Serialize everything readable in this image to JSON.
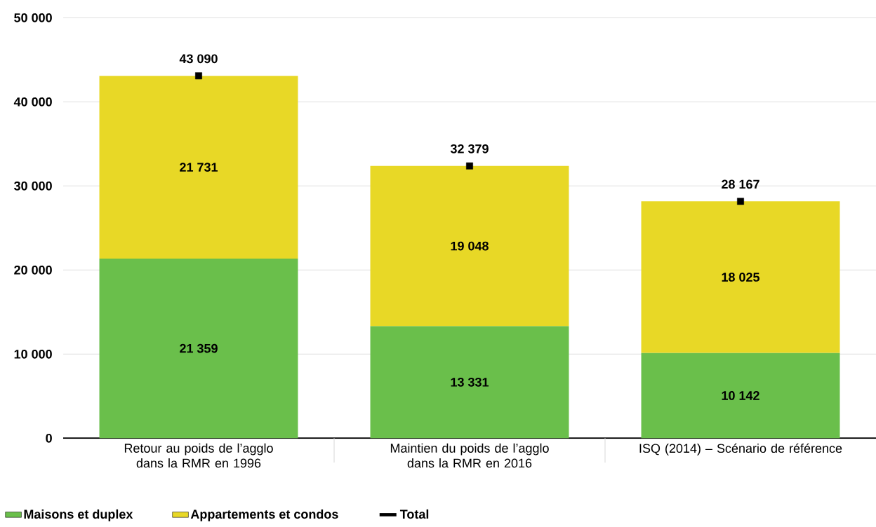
{
  "chart_data": {
    "type": "bar",
    "stacked": true,
    "categories": [
      "Retour au poids de l’agglo dans la RMR en 1996",
      "Maintien du poids de l’agglo dans la RMR en 2016",
      "ISQ (2014) – Scénario de référence"
    ],
    "series": [
      {
        "name": "Maisons et duplex",
        "color": "#6abf4b",
        "values": [
          21359,
          13331,
          10142
        ],
        "value_labels": [
          "21 359",
          "13 331",
          "10 142"
        ]
      },
      {
        "name": "Appartements et condos",
        "color": "#e8d826",
        "values": [
          21731,
          19048,
          18025
        ],
        "value_labels": [
          "21 731",
          "19 048",
          "18 025"
        ]
      },
      {
        "name": "Total",
        "type": "scatter",
        "color": "#000000",
        "values": [
          43090,
          32379,
          28167
        ]
      }
    ],
    "totals": [
      "43 090",
      "32 379",
      "28 167"
    ],
    "ylim": [
      0,
      50000
    ],
    "yticks": [
      0,
      {
        "value": 10000,
        "label": "10 000"
      },
      {
        "value": 20000,
        "label": "20 000"
      },
      {
        "value": 30000,
        "label": "30 000"
      },
      {
        "value": 40000,
        "label": "40 000"
      },
      {
        "value": 50000,
        "label": "50 000"
      }
    ],
    "grid": "y",
    "legend": "bottom left"
  }
}
